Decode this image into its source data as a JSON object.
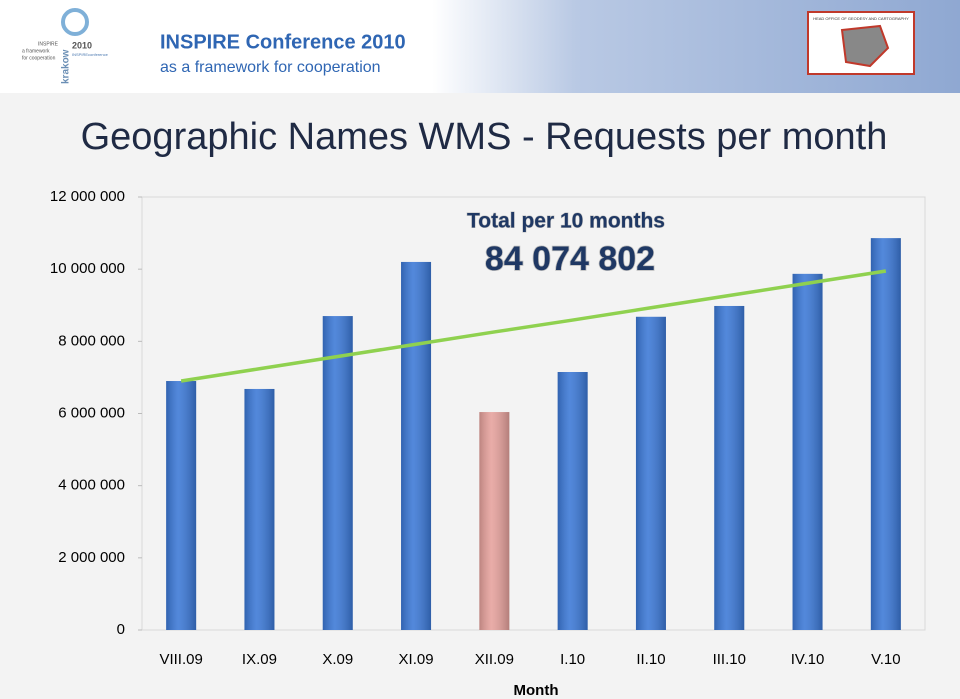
{
  "header": {
    "title": "INSPIRE Conference 2010",
    "subtitle": "as a framework for cooperation",
    "logo_left": [
      "INSPIRE",
      "a framework",
      "for cooperation",
      "krakow",
      "2010",
      "INSPIREconference"
    ],
    "logo_right": "HEAD OFFICE OF GEODESY AND CARTOGRAPHY"
  },
  "chart_data": {
    "type": "bar",
    "title": "Geographic Names WMS - Requests per month",
    "x_label": "Month",
    "annotation": {
      "title": "Total per 10 months",
      "value": "84 074 802"
    },
    "categories": [
      "VIII.09",
      "IX.09",
      "X.09",
      "XI.09",
      "XII.09",
      "I.10",
      "II.10",
      "III.10",
      "IV.10",
      "V.10"
    ],
    "values": [
      6900000,
      6680000,
      8700000,
      10200000,
      6040000,
      7150000,
      8680000,
      8980000,
      9870000,
      10860000
    ],
    "colors": [
      "#3b78d6",
      "#3b78d6",
      "#3b78d6",
      "#3b78d6",
      "#e6a19c",
      "#3b78d6",
      "#3b78d6",
      "#3b78d6",
      "#3b78d6",
      "#3b78d6"
    ],
    "trend": {
      "color": "#8fd14f",
      "values": [
        6900000,
        7240000,
        7580000,
        7920000,
        8260000,
        8590000,
        8930000,
        9270000,
        9610000,
        9950000
      ]
    },
    "ylim": [
      0,
      12000000
    ],
    "yticks": [
      0,
      {
        "value": 2000000,
        "label": "2 000 000"
      },
      {
        "value": 4000000,
        "label": "4 000 000"
      },
      {
        "value": 6000000,
        "label": "6 000 000"
      },
      {
        "value": 8000000,
        "label": "8 000 000"
      },
      {
        "value": 10000000,
        "label": "10 000 000"
      },
      {
        "value": 12000000,
        "label": "12 000 000"
      }
    ]
  }
}
